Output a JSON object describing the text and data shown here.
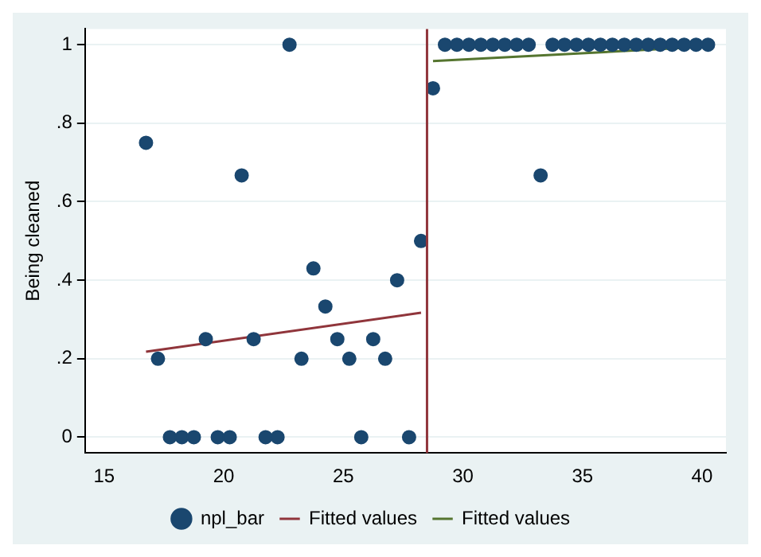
{
  "chart_data": {
    "type": "scatter",
    "ylabel": "Being cleaned",
    "x": [
      16.75,
      17.25,
      17.75,
      18.25,
      18.75,
      19.25,
      19.75,
      20.25,
      20.75,
      21.25,
      21.75,
      22.25,
      22.75,
      23.25,
      23.75,
      24.25,
      24.75,
      25.25,
      25.75,
      26.25,
      26.75,
      27.25,
      27.75,
      28.25,
      28.75,
      29.25,
      29.75,
      30.25,
      30.75,
      31.25,
      31.75,
      32.25,
      32.75,
      33.25,
      33.75,
      34.25,
      34.75,
      35.25,
      35.75,
      36.25,
      36.75,
      37.25,
      37.75,
      38.25,
      38.75,
      39.25,
      39.75,
      40.25
    ],
    "series": [
      {
        "name": "npl_bar",
        "color": "#1a476f",
        "marker": "circle",
        "values": [
          0.75,
          0.2,
          0,
          0,
          0,
          0.25,
          0,
          0,
          0.667,
          0.25,
          0,
          0,
          1,
          0.2,
          0.43,
          0.333,
          0.25,
          0.2,
          0,
          0.25,
          0.2,
          0.4,
          0,
          0.5,
          0.889,
          1,
          1,
          1,
          1,
          1,
          1,
          1,
          1,
          0.667,
          1,
          1,
          1,
          1,
          1,
          1,
          1,
          1,
          1,
          1,
          1,
          1,
          1,
          1
        ]
      },
      {
        "name": "Fitted values",
        "type": "line",
        "color": "#90353b",
        "marker": "none",
        "x": [
          16.75,
          28.25
        ],
        "values": [
          0.218,
          0.317
        ]
      },
      {
        "name": "Fitted values",
        "type": "line",
        "color": "#55752f",
        "marker": "none",
        "x": [
          28.75,
          40.25
        ],
        "values": [
          0.958,
          0.995
        ]
      }
    ],
    "xlim": [
      14.2,
      41
    ],
    "xticks": [
      15,
      20,
      25,
      30,
      35,
      40
    ],
    "ylim": [
      -0.04,
      1.04
    ],
    "yticks": [
      {
        "value": 0,
        "label": "0"
      },
      {
        "value": 0.2,
        "label": ".2"
      },
      {
        "value": 0.4,
        "label": ".4"
      },
      {
        "value": 0.6,
        "label": ".6"
      },
      {
        "value": 0.8,
        "label": ".8"
      },
      {
        "value": 1,
        "label": "1"
      }
    ],
    "ref_lines": [
      {
        "axis": "x",
        "value": 28.5,
        "color": "#90353b"
      }
    ],
    "grid": "y",
    "legend": "bottom"
  }
}
